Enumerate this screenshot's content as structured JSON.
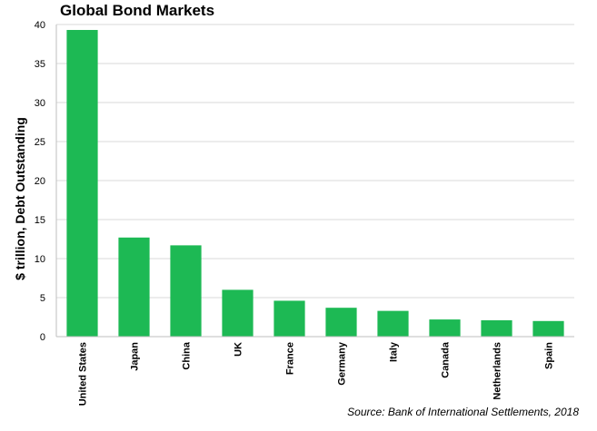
{
  "chart_data": {
    "type": "bar",
    "title": "Global Bond Markets",
    "ylabel": "$ trillion, Debt Outstanding",
    "xlabel": "",
    "source": "Source: Bank of International Settlements, 2018",
    "categories": [
      "United States",
      "Japan",
      "China",
      "UK",
      "France",
      "Germany",
      "Italy",
      "Canada",
      "Netherlands",
      "Spain"
    ],
    "values": [
      39.3,
      12.7,
      11.7,
      6.0,
      4.6,
      3.7,
      3.3,
      2.2,
      2.1,
      2.0
    ],
    "ylim": [
      0,
      40
    ],
    "yticks": [
      "0",
      "5",
      "10",
      "15",
      "20",
      "25",
      "30",
      "35",
      "40"
    ],
    "grid": true,
    "bar_color": "#1db954",
    "grid_color": "#d9d9d9"
  }
}
